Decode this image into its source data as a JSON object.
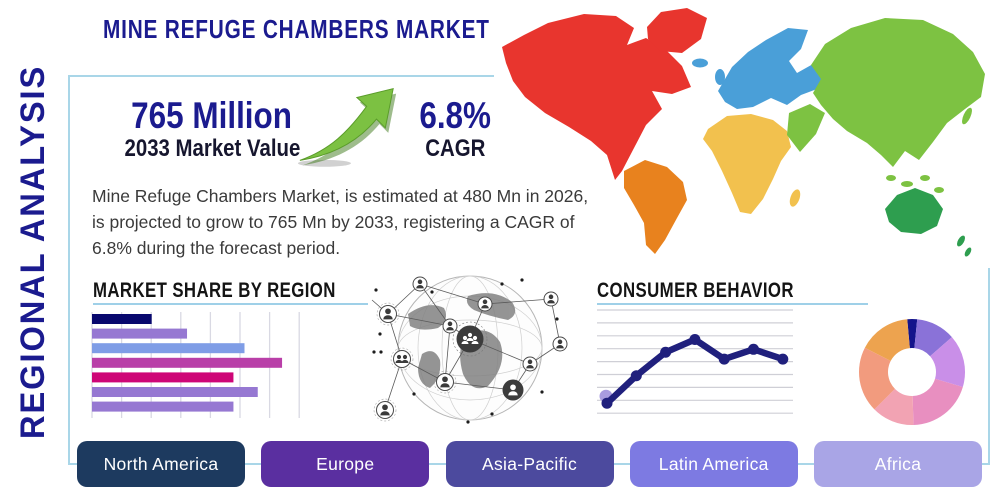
{
  "accent": {
    "border_blue": "#a9d6e8",
    "underline_blue": "#9fd0e8",
    "navy": "#1b1b8f"
  },
  "sidebar": {
    "label": "REGIONAL ANALYSIS"
  },
  "header": {
    "title": "MINE REFUGE CHAMBERS MARKET"
  },
  "stats": {
    "market_value": "765 Million",
    "market_value_label": "2033 Market Value",
    "cagr_value": "6.8%",
    "cagr_label": "CAGR",
    "arrow_icon": "growth-arrow-up-right",
    "arrow_color": "#7cc142"
  },
  "description": "Mine Refuge Chambers Market, is estimated at 480 Mn in 2026, is projected to grow to 765 Mn by 2033, registering a CAGR of 6.8% during the forecast period.",
  "sections": {
    "market_share_heading": "MARKET SHARE BY REGION",
    "consumer_heading": "CONSUMER BEHAVIOR"
  },
  "chart_data": [
    {
      "type": "bar",
      "title": "MARKET SHARE BY REGION",
      "orientation": "horizontal",
      "values": [
        27,
        43,
        69,
        86,
        64,
        75,
        64
      ],
      "xlim": [
        0,
        100
      ],
      "grid": true,
      "colors": [
        "#08086e",
        "#9678d2",
        "#7f9de6",
        "#b93fa8",
        "#ce0677",
        "#9678d2",
        "#9678d2"
      ],
      "note": "bars are unlabeled in the image; values are relative bar lengths in % of axis"
    },
    {
      "type": "line",
      "title": "CONSUMER BEHAVIOR",
      "x": [
        1,
        2,
        3,
        4,
        5,
        6,
        7
      ],
      "values": [
        10,
        38,
        62,
        75,
        55,
        65,
        55
      ],
      "ylim": [
        0,
        100
      ],
      "grid": true,
      "line_color": "#20207d",
      "first_point_halo_color": "#a99ce0",
      "note": "axes are unlabeled in the image; values are relative heights in %"
    },
    {
      "type": "pie",
      "subtype": "donut",
      "values": [
        3,
        12,
        16,
        20,
        13,
        20,
        16
      ],
      "colors": [
        "#14148c",
        "#8a72d8",
        "#c98fe8",
        "#e88fc0",
        "#f2a3b3",
        "#f29b7e",
        "#eda34f"
      ],
      "note": "segments are unlabeled in the image; values are % estimates"
    }
  ],
  "map": {
    "name": "world-map",
    "region_colors": {
      "north_america": "#e8352e",
      "south_america": "#e8821e",
      "europe": "#4a9fd8",
      "africa": "#f2c14e",
      "asia": "#7dc242",
      "australia": "#2e9e4f"
    }
  },
  "globe": {
    "name": "globe-network-graphic"
  },
  "buttons": [
    {
      "label": "North America",
      "color": "#1d3a5f"
    },
    {
      "label": "Europe",
      "color": "#5a2fa0"
    },
    {
      "label": "Asia-Pacific",
      "color": "#4c4a9e"
    },
    {
      "label": "Latin America",
      "color": "#7d7ae2"
    },
    {
      "label": "Africa",
      "color": "#a9a5e6"
    }
  ]
}
